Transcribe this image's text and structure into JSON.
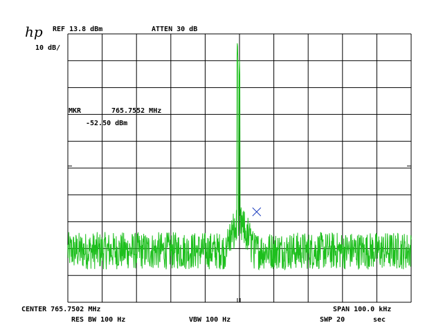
{
  "instrument": {
    "logo": "hp",
    "ref_level": "REF 13.8 dBm",
    "attenuation": "ATTEN 30 dB",
    "scale": "10 dB/",
    "marker_label": "MKR",
    "marker_freq": "765.7552 MHz",
    "marker_level": "-52.50 dBm",
    "center": "CENTER 765.7502 MHz",
    "span": "SPAN 100.0 kHz",
    "res_bw": "RES BW 100 Hz",
    "vbw": "VBW 100 Hz",
    "sweep": "SWP 20",
    "sweep_unit": "sec"
  },
  "colors": {
    "trace": "#1dbf1d",
    "grid": "#000000",
    "marker": "#1f3fbf"
  },
  "chart_data": {
    "type": "line",
    "x_unit": "MHz",
    "y_unit": "dBm",
    "xlim": [
      765.7002,
      765.8002
    ],
    "ylim": [
      -86.2,
      13.8
    ],
    "grid": true,
    "divisions": {
      "x": 10,
      "y": 10
    },
    "noise_floor_dbm": -67,
    "noise_spread_db": 14,
    "skirt": {
      "center_mhz": 765.7502,
      "width_mhz": 0.004,
      "peak_rise_db": 8
    },
    "peaks": [
      {
        "freq_mhz": 765.7496,
        "level_dbm": 12.5
      },
      {
        "freq_mhz": 765.7502,
        "level_dbm": 4.0
      }
    ],
    "marker": {
      "freq_mhz": 765.7552,
      "level_dbm": -52.5
    }
  }
}
